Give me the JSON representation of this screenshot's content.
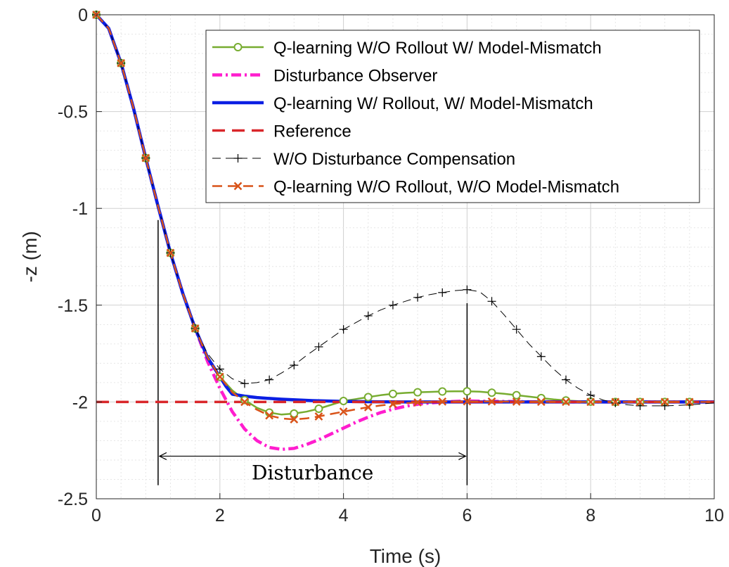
{
  "chart_data": {
    "type": "line",
    "title": "",
    "xlabel": "Time (s)",
    "ylabel": "-z (m)",
    "xlim": [
      0,
      10
    ],
    "ylim": [
      -2.5,
      0
    ],
    "xticks": [
      "0",
      "2",
      "4",
      "6",
      "8",
      "10"
    ],
    "yticks": [
      "0",
      "-0.5",
      "-1",
      "-1.5",
      "-2",
      "-2.5"
    ],
    "grid": true,
    "minor_grid": true,
    "legend_position": "top-right",
    "annotation": {
      "text": "Disturbance",
      "start": 1,
      "end": 6,
      "arrow_y": -2.28,
      "bar_start_top": -1.06,
      "bar_end_top": -1.49,
      "bar_bottom": -2.43
    },
    "series": [
      {
        "name": "Q-learning W/O Rollout W/ Model-Mismatch",
        "color": "#77ac30",
        "width": 2.5,
        "dash": "",
        "marker": "circle",
        "x": [
          0,
          0.2,
          0.4,
          0.6,
          0.8,
          1.0,
          1.2,
          1.4,
          1.6,
          1.8,
          2.0,
          2.2,
          2.4,
          2.6,
          2.8,
          3.0,
          3.2,
          3.4,
          3.6,
          3.8,
          4.0,
          4.2,
          4.4,
          4.6,
          4.8,
          5.0,
          5.2,
          5.4,
          5.6,
          5.8,
          6.0,
          6.2,
          6.4,
          6.6,
          6.8,
          7.0,
          7.2,
          7.4,
          7.6,
          7.8,
          8.0,
          8.4,
          8.8,
          9.2,
          9.6,
          10.0
        ],
        "y": [
          0,
          -0.07,
          -0.25,
          -0.48,
          -0.74,
          -0.99,
          -1.23,
          -1.44,
          -1.62,
          -1.77,
          -1.87,
          -1.94,
          -1.99,
          -2.03,
          -2.055,
          -2.065,
          -2.06,
          -2.05,
          -2.035,
          -2.015,
          -1.995,
          -1.985,
          -1.975,
          -1.965,
          -1.958,
          -1.953,
          -1.95,
          -1.948,
          -1.946,
          -1.945,
          -1.945,
          -1.947,
          -1.952,
          -1.958,
          -1.965,
          -1.972,
          -1.98,
          -1.987,
          -1.992,
          -1.996,
          -1.998,
          -2.0,
          -2.0,
          -2.0,
          -2.0,
          -2.0
        ],
        "marker_x": [
          0,
          0.4,
          0.8,
          1.2,
          1.6,
          2.0,
          2.4,
          2.8,
          3.2,
          3.6,
          4.0,
          4.4,
          4.8,
          5.2,
          5.6,
          6.0,
          6.4,
          6.8,
          7.2,
          7.6,
          8.0,
          8.4,
          8.8,
          9.2,
          9.6
        ]
      },
      {
        "name": "Disturbance Observer",
        "color": "#ff1dce",
        "width": 4.5,
        "dash": "14 5 3 5",
        "marker": "none",
        "x": [
          0,
          0.2,
          0.4,
          0.6,
          0.8,
          1.0,
          1.2,
          1.4,
          1.6,
          1.8,
          2.0,
          2.2,
          2.4,
          2.6,
          2.8,
          3.0,
          3.2,
          3.4,
          3.6,
          3.8,
          4.0,
          4.2,
          4.4,
          4.6,
          4.8,
          5.0,
          5.2,
          5.4,
          5.6,
          5.8,
          6.0,
          6.5,
          7.0,
          8.0,
          9.0,
          10.0
        ],
        "y": [
          0,
          -0.07,
          -0.25,
          -0.48,
          -0.74,
          -0.99,
          -1.23,
          -1.44,
          -1.62,
          -1.79,
          -1.93,
          -2.05,
          -2.14,
          -2.2,
          -2.235,
          -2.245,
          -2.24,
          -2.22,
          -2.195,
          -2.165,
          -2.135,
          -2.105,
          -2.078,
          -2.055,
          -2.037,
          -2.022,
          -2.012,
          -2.005,
          -2.0,
          -1.997,
          -1.995,
          -1.997,
          -1.999,
          -2.0,
          -2.0,
          -2.0
        ]
      },
      {
        "name": "Q-learning W/ Rollout, W/ Model-Mismatch",
        "color": "#0b1fe3",
        "width": 4.5,
        "dash": "",
        "marker": "none",
        "x": [
          0,
          0.2,
          0.4,
          0.6,
          0.8,
          1.0,
          1.2,
          1.4,
          1.6,
          1.8,
          2.0,
          2.1,
          2.2,
          2.4,
          2.6,
          2.8,
          3.0,
          3.5,
          4.0,
          4.5,
          5.0,
          6.0,
          7.0,
          8.0,
          9.0,
          10.0
        ],
        "y": [
          0,
          -0.07,
          -0.25,
          -0.48,
          -0.74,
          -0.99,
          -1.23,
          -1.44,
          -1.62,
          -1.77,
          -1.87,
          -1.92,
          -1.96,
          -1.97,
          -1.977,
          -1.982,
          -1.986,
          -1.993,
          -1.997,
          -1.999,
          -2.0,
          -2.0,
          -2.0,
          -2.0,
          -2.0,
          -2.0
        ]
      },
      {
        "name": "Reference",
        "color": "#d9262a",
        "width": 3.5,
        "dash": "18 10",
        "marker": "none",
        "x": [
          0,
          10
        ],
        "y": [
          -2,
          -2
        ]
      },
      {
        "name": "W/O Disturbance Compensation",
        "color": "#000000",
        "width": 1,
        "dash": "12 7",
        "marker": "plus",
        "x": [
          0,
          0.2,
          0.4,
          0.6,
          0.8,
          1.0,
          1.2,
          1.4,
          1.6,
          1.8,
          2.0,
          2.2,
          2.4,
          2.6,
          2.8,
          3.0,
          3.2,
          3.4,
          3.6,
          3.8,
          4.0,
          4.2,
          4.4,
          4.6,
          4.8,
          5.0,
          5.2,
          5.4,
          5.6,
          5.8,
          6.0,
          6.2,
          6.4,
          6.6,
          6.8,
          7.0,
          7.2,
          7.4,
          7.6,
          7.8,
          8.0,
          8.2,
          8.4,
          8.6,
          8.8,
          9.0,
          9.2,
          9.4,
          9.6,
          9.8,
          10.0
        ],
        "y": [
          0,
          -0.07,
          -0.25,
          -0.48,
          -0.74,
          -0.99,
          -1.23,
          -1.44,
          -1.62,
          -1.75,
          -1.83,
          -1.88,
          -1.905,
          -1.9,
          -1.885,
          -1.85,
          -1.81,
          -1.76,
          -1.715,
          -1.67,
          -1.625,
          -1.59,
          -1.555,
          -1.525,
          -1.5,
          -1.48,
          -1.46,
          -1.445,
          -1.435,
          -1.425,
          -1.42,
          -1.43,
          -1.48,
          -1.55,
          -1.625,
          -1.7,
          -1.765,
          -1.83,
          -1.885,
          -1.93,
          -1.965,
          -1.99,
          -2.005,
          -2.015,
          -2.02,
          -2.02,
          -2.02,
          -2.018,
          -2.015,
          -2.01,
          -2.005
        ],
        "marker_x": [
          0,
          0.4,
          0.8,
          1.2,
          1.6,
          2.0,
          2.4,
          2.8,
          3.2,
          3.6,
          4.0,
          4.4,
          4.8,
          5.2,
          5.6,
          6.0,
          6.4,
          6.8,
          7.2,
          7.6,
          8.0,
          8.4,
          8.8,
          9.2,
          9.6
        ]
      },
      {
        "name": "Q-learning W/O Rollout, W/O Model-Mismatch",
        "color": "#d95319",
        "width": 2.5,
        "dash": "14 8",
        "marker": "x",
        "x": [
          0,
          0.2,
          0.4,
          0.6,
          0.8,
          1.0,
          1.2,
          1.4,
          1.6,
          1.8,
          2.0,
          2.2,
          2.4,
          2.6,
          2.8,
          3.0,
          3.2,
          3.4,
          3.6,
          3.8,
          4.0,
          4.2,
          4.4,
          4.6,
          4.8,
          5.0,
          5.2,
          5.4,
          5.6,
          6.0,
          7.0,
          8.0,
          9.0,
          10.0
        ],
        "y": [
          0,
          -0.07,
          -0.25,
          -0.48,
          -0.74,
          -0.99,
          -1.23,
          -1.44,
          -1.62,
          -1.77,
          -1.87,
          -1.95,
          -2.0,
          -2.04,
          -2.07,
          -2.085,
          -2.09,
          -2.085,
          -2.075,
          -2.062,
          -2.05,
          -2.038,
          -2.027,
          -2.018,
          -2.011,
          -2.006,
          -2.002,
          -2.0,
          -1.998,
          -1.997,
          -1.999,
          -2.0,
          -2.0,
          -2.0
        ],
        "marker_x": [
          0,
          0.4,
          0.8,
          1.2,
          1.6,
          2.0,
          2.4,
          2.8,
          3.2,
          3.6,
          4.0,
          4.4,
          4.8,
          5.2,
          5.6,
          6.0,
          6.4,
          6.8,
          7.2,
          7.6,
          8.0,
          8.4,
          8.8,
          9.2,
          9.6
        ]
      }
    ]
  }
}
